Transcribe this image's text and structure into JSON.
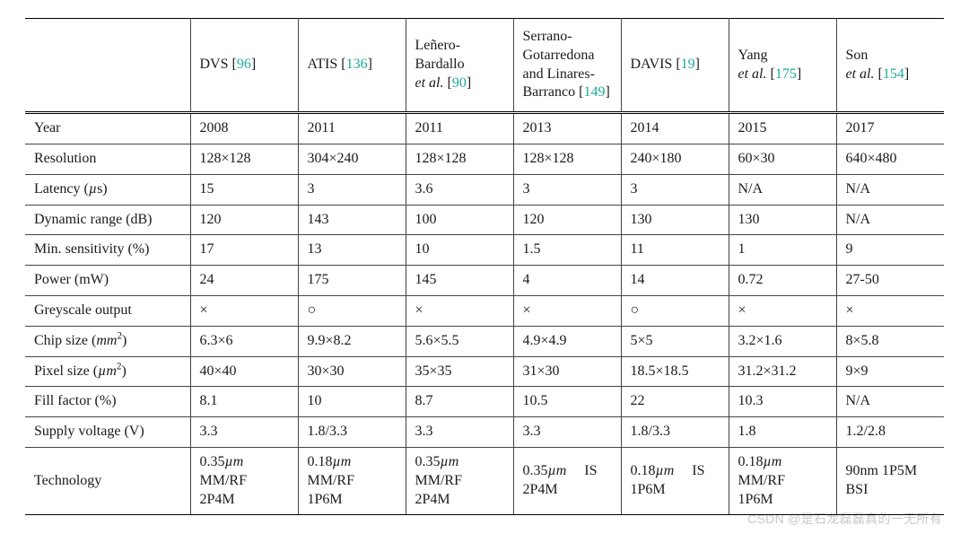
{
  "ref_color": "#1da89a",
  "watermark": "CSDN @是石龙磊磊真的一无所有",
  "columns": [
    {
      "prefix": "DVS [",
      "ref": "96",
      "suffix": "]"
    },
    {
      "prefix": "ATIS [",
      "ref": "136",
      "suffix": "]"
    },
    {
      "html": "Leñero-<br>Bardallo<br><span class=\"ital\">et al.</span> [<span class=\"ref\">90</span>]"
    },
    {
      "html": "Serrano-<br>Gotarredona<br>and Linares-<br>Barranco [<span class=\"ref\">149</span>]"
    },
    {
      "prefix": "DAVIS [",
      "ref": "19",
      "suffix": "]"
    },
    {
      "html": "Yang<br><span class=\"ital\">et al.</span> [<span class=\"ref\">175</span>]"
    },
    {
      "html": "Son<br><span class=\"ital\">et al.</span> [<span class=\"ref\">154</span>]"
    }
  ],
  "rows": [
    {
      "label": "Year",
      "cells": [
        "2008",
        "2011",
        "2011",
        "2013",
        "2014",
        "2015",
        "2017"
      ]
    },
    {
      "label": "Resolution",
      "cells": [
        "128×128",
        "304×240",
        "128×128",
        "128×128",
        "240×180",
        "60×30",
        "640×480"
      ]
    },
    {
      "label_html": "Latency (<span class=\"ital\">µ</span>s)",
      "cells": [
        "15",
        "3",
        "3.6",
        "3",
        "3",
        "N/A",
        "N/A"
      ]
    },
    {
      "label": "Dynamic range (dB)",
      "cells": [
        "120",
        "143",
        "100",
        "120",
        "130",
        "130",
        "N/A"
      ]
    },
    {
      "label": "Min. sensitivity (%)",
      "cells": [
        "17",
        "13",
        "10",
        "1.5",
        "11",
        "1",
        "9"
      ]
    },
    {
      "label": "Power (mW)",
      "cells": [
        "24",
        "175",
        "145",
        "4",
        "14",
        "0.72",
        "27-50"
      ]
    },
    {
      "label": "Greyscale output",
      "cells": [
        "×",
        "○",
        "×",
        "×",
        "○",
        "×",
        "×"
      ]
    },
    {
      "label_html": "Chip size (<span class=\"ital\">mm</span><sup>2</sup>)",
      "cells": [
        "6.3×6",
        "9.9×8.2",
        "5.6×5.5",
        "4.9×4.9",
        "5×5",
        "3.2×1.6",
        "8×5.8"
      ]
    },
    {
      "label_html": "Pixel size (<span class=\"ital\">µm</span><sup>2</sup>)",
      "cells": [
        "40×40",
        "30×30",
        "35×35",
        "31×30",
        "18.5×18.5",
        "31.2×31.2",
        "9×9"
      ]
    },
    {
      "label": "Fill factor (%)",
      "cells": [
        "8.1",
        "10",
        "8.7",
        "10.5",
        "22",
        "10.3",
        "N/A"
      ]
    },
    {
      "label": "Supply voltage (V)",
      "cells": [
        "3.3",
        "1.8/3.3",
        "3.3",
        "3.3",
        "1.8/3.3",
        "1.8",
        "1.2/2.8"
      ]
    },
    {
      "label": "Technology",
      "cells_html": [
        "0.35<span class=\"ital\">µm</span><br>MM/RF<br>2P4M",
        "0.18<span class=\"ital\">µm</span><br>MM/RF<br>1P6M",
        "0.35<span class=\"ital\">µm</span><br>MM/RF<br>2P4M",
        "0.35<span class=\"ital\">µm</span>&nbsp;&nbsp;&nbsp;&nbsp;&nbsp;IS<br>2P4M",
        "0.18<span class=\"ital\">µm</span>&nbsp;&nbsp;&nbsp;&nbsp;&nbsp;IS<br>1P6M",
        "0.18<span class=\"ital\">µm</span><br>MM/RF<br>1P6M",
        "90nm 1P5M<br>BSI"
      ]
    }
  ]
}
